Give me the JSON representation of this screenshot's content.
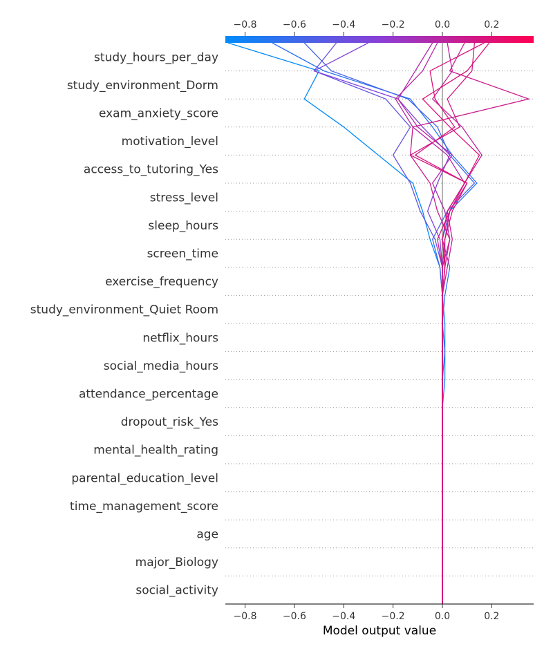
{
  "chart_data": {
    "type": "line",
    "subtype": "shap-decision-plot",
    "xlabel": "Model output value",
    "xlim": [
      -0.88,
      0.37
    ],
    "xticks": [
      -0.8,
      -0.6,
      -0.4,
      -0.2,
      0.0,
      0.2
    ],
    "xtick_labels": [
      "−0.8",
      "−0.6",
      "−0.4",
      "−0.2",
      "0.0",
      "0.2"
    ],
    "base_value": 0.0,
    "grid": "dotted horizontal row lines",
    "colorbar": {
      "position": "top",
      "colors": [
        "#008bfb",
        "#8a3fd6",
        "#ff0052"
      ],
      "range": [
        -0.88,
        0.37
      ]
    },
    "features": [
      "study_hours_per_day",
      "study_environment_Dorm",
      "exam_anxiety_score",
      "motivation_level",
      "access_to_tutoring_Yes",
      "stress_level",
      "sleep_hours",
      "screen_time",
      "exercise_frequency",
      "study_environment_Quiet Room",
      "netflix_hours",
      "social_media_hours",
      "attendance_percentage",
      "dropout_risk_Yes",
      "mental_health_rating",
      "parental_education_level",
      "time_management_score",
      "age",
      "major_Biology",
      "social_activity"
    ],
    "series": [
      {
        "final": -0.87,
        "values": [
          -0.87,
          -0.5,
          -0.56,
          -0.4,
          -0.26,
          -0.12,
          -0.08,
          -0.05,
          -0.01,
          0.0,
          0.01,
          0.01,
          0.01,
          0.0,
          0.0,
          0.0,
          0.0,
          0.0,
          0.0,
          0.0,
          0.0
        ]
      },
      {
        "final": -0.69,
        "values": [
          -0.69,
          -0.48,
          -0.13,
          -0.04,
          0.04,
          0.14,
          0.03,
          0.0,
          0.03,
          0.01,
          0.0,
          0.01,
          0.0,
          0.0,
          0.0,
          0.0,
          0.0,
          0.0,
          0.0,
          0.0,
          0.0
        ]
      },
      {
        "final": -0.56,
        "values": [
          -0.56,
          -0.45,
          -0.14,
          -0.02,
          0.03,
          0.13,
          0.02,
          -0.04,
          -0.01,
          0.0,
          0.0,
          0.0,
          0.0,
          0.0,
          0.0,
          0.0,
          0.0,
          0.0,
          0.0,
          0.0,
          0.0
        ]
      },
      {
        "final": -0.43,
        "values": [
          -0.43,
          -0.52,
          -0.23,
          -0.13,
          -0.2,
          -0.13,
          -0.09,
          -0.03,
          0.0,
          0.0,
          0.0,
          0.0,
          0.0,
          0.0,
          0.0,
          0.0,
          0.0,
          0.0,
          0.0,
          0.0,
          0.0
        ]
      },
      {
        "final": -0.3,
        "values": [
          -0.3,
          -0.52,
          -0.18,
          -0.08,
          0.03,
          -0.02,
          -0.06,
          -0.01,
          0.0,
          0.0,
          0.0,
          0.0,
          0.0,
          0.0,
          0.0,
          0.0,
          0.0,
          0.0,
          0.0,
          0.0,
          0.0
        ]
      },
      {
        "final": -0.04,
        "values": [
          -0.04,
          -0.11,
          -0.18,
          -0.1,
          0.04,
          -0.04,
          0.01,
          0.03,
          0.0,
          0.0,
          0.0,
          0.0,
          0.0,
          0.0,
          0.0,
          0.0,
          0.0,
          0.0,
          0.0,
          0.0,
          0.0
        ]
      },
      {
        "final": -0.02,
        "values": [
          -0.02,
          -0.08,
          -0.19,
          -0.12,
          0.02,
          0.09,
          0.03,
          0.01,
          0.0,
          0.0,
          0.0,
          0.0,
          0.0,
          0.0,
          0.0,
          0.0,
          0.0,
          0.0,
          0.0,
          0.0,
          0.0
        ]
      },
      {
        "final": 0.02,
        "values": [
          0.02,
          0.04,
          -0.04,
          0.08,
          0.16,
          0.09,
          0.02,
          0.04,
          0.02,
          0.0,
          0.0,
          0.0,
          0.0,
          0.0,
          0.0,
          0.0,
          0.0,
          0.0,
          0.0,
          0.0,
          0.0
        ]
      },
      {
        "final": 0.09,
        "values": [
          0.09,
          0.03,
          0.35,
          -0.12,
          -0.13,
          -0.05,
          -0.02,
          0.03,
          0.01,
          0.0,
          0.0,
          0.0,
          0.0,
          0.0,
          0.0,
          0.0,
          0.0,
          0.0,
          0.0,
          0.0,
          0.0
        ]
      },
      {
        "final": 0.13,
        "values": [
          0.13,
          0.12,
          0.02,
          0.07,
          -0.13,
          0.1,
          0.03,
          -0.02,
          0.0,
          0.0,
          0.0,
          0.0,
          0.0,
          0.0,
          0.0,
          0.0,
          0.0,
          0.0,
          0.0,
          0.0,
          0.0
        ]
      },
      {
        "final": 0.17,
        "values": [
          0.17,
          -0.05,
          -0.03,
          0.05,
          -0.11,
          0.1,
          0.04,
          0.01,
          0.01,
          0.0,
          0.0,
          0.0,
          0.0,
          0.0,
          0.0,
          0.0,
          0.0,
          0.0,
          0.0,
          0.0,
          0.0
        ]
      },
      {
        "final": 0.19,
        "values": [
          0.19,
          0.1,
          -0.08,
          0.03,
          0.15,
          0.09,
          0.02,
          0.0,
          0.01,
          0.0,
          0.0,
          0.0,
          0.0,
          0.0,
          0.0,
          0.0,
          0.0,
          0.0,
          0.0,
          0.0,
          0.0
        ]
      }
    ]
  }
}
